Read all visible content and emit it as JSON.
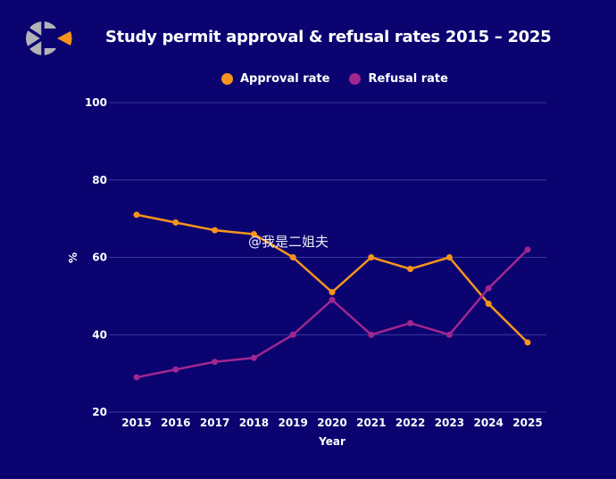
{
  "chart_data": {
    "type": "line",
    "title": "Study permit approval & refusal rates 2015 – 2025",
    "xlabel": "Year",
    "ylabel": "%",
    "x": [
      "2015",
      "2016",
      "2017",
      "2018",
      "2019",
      "2020",
      "2021",
      "2022",
      "2023",
      "2024",
      "2025"
    ],
    "ylim": [
      20,
      100
    ],
    "yticks": [
      "100",
      "80",
      "60",
      "40",
      "20"
    ],
    "grid": true,
    "legend_position": "top-center",
    "series": [
      {
        "name": "Approval rate",
        "color": "#f7941d",
        "values": [
          71,
          69,
          67,
          66,
          60,
          51,
          60,
          57,
          60,
          48,
          38
        ]
      },
      {
        "name": "Refusal rate",
        "color": "#a0278f",
        "values": [
          29,
          31,
          33,
          34,
          40,
          49,
          40,
          43,
          40,
          52,
          62
        ]
      }
    ]
  },
  "watermark": "@我是二姐夫"
}
